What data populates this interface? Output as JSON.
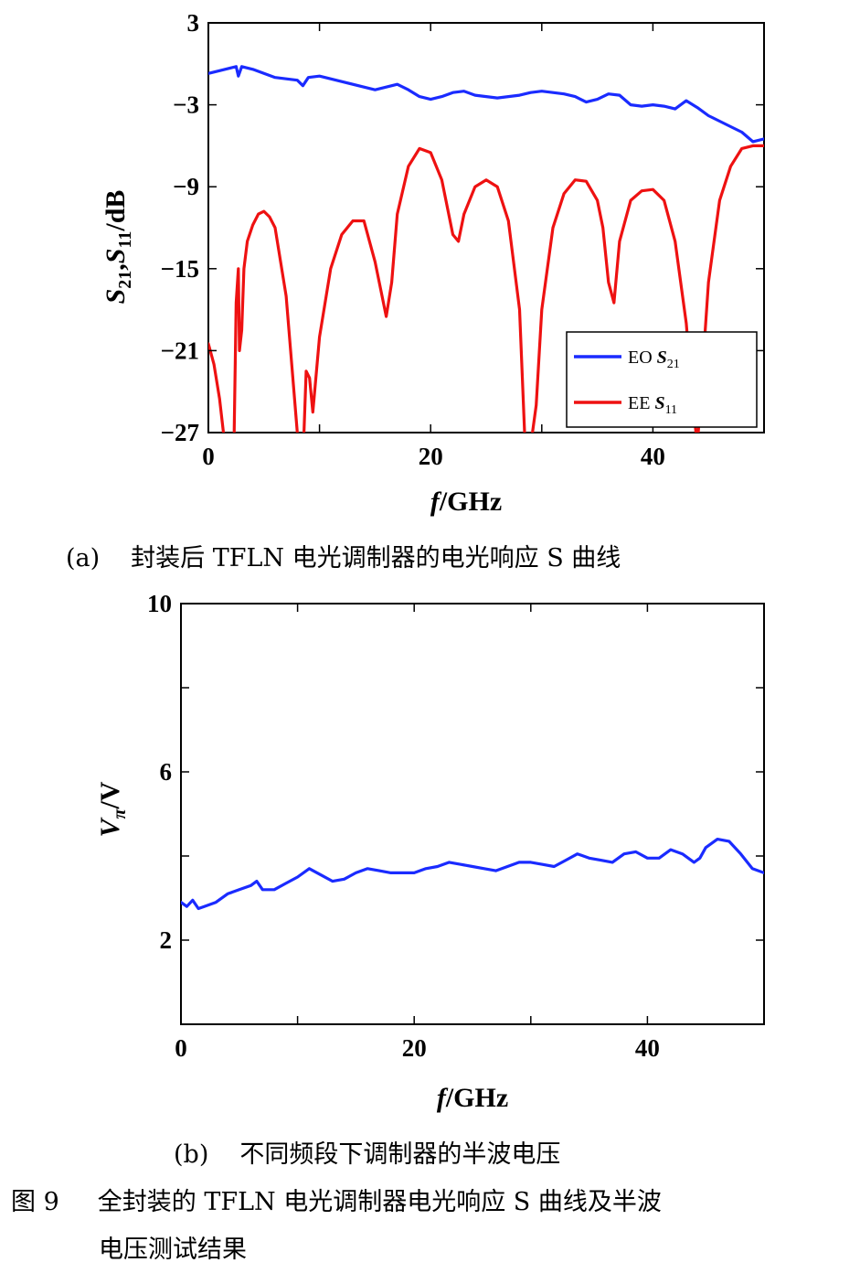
{
  "chart_data": [
    {
      "type": "line",
      "panel": "(a)",
      "caption": "封装后 TFLN 电光调制器的电光响应 S 曲线",
      "xlabel": "f/GHz",
      "ylabel": "S21,S11/dB",
      "xlim": [
        0,
        50
      ],
      "ylim": [
        -27,
        3
      ],
      "xticks": [
        0,
        20,
        40
      ],
      "yticks": [
        3,
        -3,
        -9,
        -15,
        -21,
        -27
      ],
      "xtick_labels": [
        "0",
        "20",
        "40"
      ],
      "ytick_labels": [
        "3",
        "−3",
        "−9",
        "−15",
        "−21",
        "−27"
      ],
      "legend_position": "lower-right",
      "series": [
        {
          "name": "EO S21",
          "legend": {
            "prefix": "EO ",
            "sym": "S",
            "sub": "21"
          },
          "color": "#1a2bff",
          "x": [
            0,
            1,
            2,
            2.5,
            2.7,
            3,
            4,
            6,
            8,
            8.5,
            9,
            10,
            12,
            14,
            15,
            16,
            17,
            18,
            19,
            20,
            21,
            22,
            23,
            24,
            25,
            26,
            27,
            28,
            29,
            30,
            31,
            32,
            33,
            34,
            35,
            36,
            37,
            38,
            39,
            40,
            41,
            42,
            43,
            44,
            45,
            46,
            47,
            48,
            49,
            50
          ],
          "y": [
            -0.7,
            -0.5,
            -0.3,
            -0.2,
            -0.9,
            -0.2,
            -0.4,
            -1.0,
            -1.2,
            -1.6,
            -1.0,
            -0.9,
            -1.3,
            -1.7,
            -1.9,
            -1.7,
            -1.5,
            -1.9,
            -2.4,
            -2.6,
            -2.4,
            -2.1,
            -2.0,
            -2.3,
            -2.4,
            -2.5,
            -2.4,
            -2.3,
            -2.1,
            -2.0,
            -2.1,
            -2.2,
            -2.4,
            -2.8,
            -2.6,
            -2.2,
            -2.3,
            -3.0,
            -3.1,
            -3.0,
            -3.1,
            -3.3,
            -2.7,
            -3.2,
            -3.8,
            -4.2,
            -4.6,
            -5.0,
            -5.7,
            -5.5
          ]
        },
        {
          "name": "EE S11",
          "legend": {
            "prefix": "EE ",
            "sym": "S",
            "sub": "11"
          },
          "color": "#ee1111",
          "x": [
            0,
            0.5,
            1,
            1.5,
            2,
            2.3,
            2.5,
            2.7,
            2.8,
            3.0,
            3.2,
            3.5,
            4,
            4.5,
            5,
            5.5,
            6,
            7,
            7.5,
            8,
            8.3,
            8.6,
            8.8,
            9.1,
            9.4,
            10,
            11,
            12,
            13,
            14,
            14.5,
            15,
            15.5,
            16,
            16.5,
            17,
            18,
            19,
            20,
            21,
            22,
            22.5,
            23,
            24,
            25,
            26,
            27,
            28,
            28.5,
            29,
            29.5,
            30,
            31,
            32,
            33,
            34,
            35,
            35.5,
            36,
            36.5,
            37,
            38,
            39,
            40,
            41,
            42,
            43,
            43.5,
            44,
            44.5,
            45,
            46,
            47,
            48,
            49,
            50
          ],
          "y": [
            -20.5,
            -22,
            -24.5,
            -28,
            -30,
            -28,
            -17.5,
            -15,
            -21,
            -19.5,
            -15,
            -13,
            -11.8,
            -11,
            -10.8,
            -11.2,
            -12,
            -17,
            -22,
            -27,
            -30,
            -27,
            -22.5,
            -23,
            -25.5,
            -20,
            -15,
            -12.5,
            -11.5,
            -11.5,
            -13,
            -14.5,
            -16.5,
            -18.5,
            -16,
            -11,
            -7.5,
            -6.2,
            -6.5,
            -8.5,
            -12.5,
            -13,
            -11,
            -9,
            -8.5,
            -9,
            -11.5,
            -18,
            -28,
            -28,
            -25,
            -18,
            -12,
            -9.5,
            -8.5,
            -8.6,
            -10,
            -12,
            -16,
            -17.5,
            -13,
            -10,
            -9.3,
            -9.2,
            -10,
            -13,
            -19,
            -24,
            -28,
            -22,
            -16,
            -10,
            -7.5,
            -6.2,
            -6.0,
            -6.0
          ]
        }
      ]
    },
    {
      "type": "line",
      "panel": "(b)",
      "caption": "不同频段下调制器的半波电压",
      "xlabel": "f/GHz",
      "ylabel": "Vπ/V",
      "xlim": [
        0,
        50
      ],
      "ylim": [
        0,
        10
      ],
      "xticks": [
        0,
        20,
        40
      ],
      "yticks": [
        10,
        6,
        2
      ],
      "xtick_labels": [
        "0",
        "20",
        "40"
      ],
      "ytick_labels": [
        "10",
        "6",
        "2"
      ],
      "series": [
        {
          "name": "",
          "color": "#1a2bff",
          "x": [
            0,
            0.5,
            1,
            1.5,
            2,
            3,
            4,
            5,
            6,
            6.5,
            7,
            8,
            9,
            10,
            11,
            12,
            13,
            14,
            15,
            16,
            17,
            18,
            19,
            20,
            21,
            22,
            23,
            24,
            25,
            26,
            27,
            28,
            29,
            30,
            31,
            32,
            33,
            34,
            35,
            36,
            37,
            38,
            39,
            40,
            41,
            42,
            43,
            44,
            44.5,
            45,
            46,
            47,
            48,
            49,
            50
          ],
          "y": [
            2.9,
            2.8,
            2.95,
            2.75,
            2.8,
            2.9,
            3.1,
            3.2,
            3.3,
            3.4,
            3.2,
            3.2,
            3.35,
            3.5,
            3.7,
            3.55,
            3.4,
            3.45,
            3.6,
            3.7,
            3.65,
            3.6,
            3.6,
            3.6,
            3.7,
            3.75,
            3.85,
            3.8,
            3.75,
            3.7,
            3.65,
            3.75,
            3.85,
            3.85,
            3.8,
            3.75,
            3.9,
            4.05,
            3.95,
            3.9,
            3.85,
            4.05,
            4.1,
            3.95,
            3.95,
            4.15,
            4.05,
            3.85,
            3.95,
            4.2,
            4.4,
            4.35,
            4.05,
            3.7,
            3.6
          ]
        }
      ]
    }
  ],
  "figure_caption": {
    "label": "图 9",
    "line1": "全封装的 TFLN 电光调制器电光响应 S 曲线及半波",
    "line2": "电压测试结果"
  }
}
